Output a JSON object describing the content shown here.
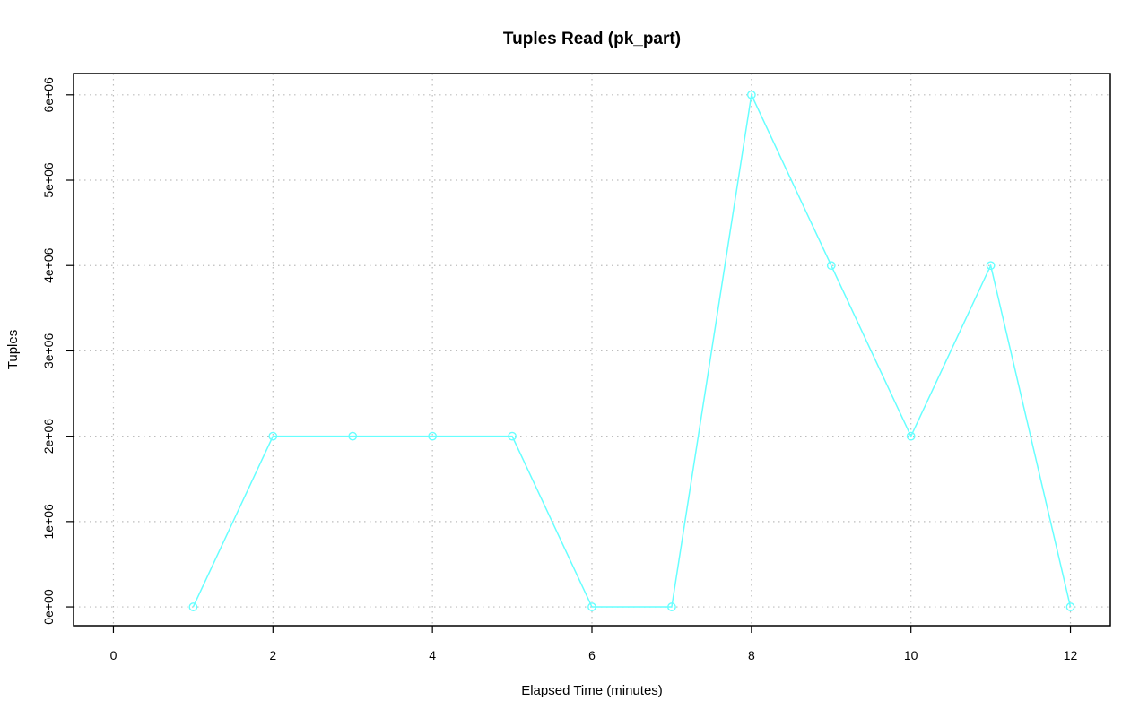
{
  "chart_data": {
    "type": "line",
    "title": "Tuples Read (pk_part)",
    "xlabel": "Elapsed Time (minutes)",
    "ylabel": "Tuples",
    "xlim": [
      -0.5,
      12.5
    ],
    "ylim": [
      -220000,
      6250000
    ],
    "xticks": [
      0,
      2,
      4,
      6,
      8,
      10,
      12
    ],
    "xtick_labels": [
      "0",
      "2",
      "4",
      "6",
      "8",
      "10",
      "12"
    ],
    "yticks": [
      0,
      1000000,
      2000000,
      3000000,
      4000000,
      5000000,
      6000000
    ],
    "ytick_labels": [
      "0e+00",
      "1e+06",
      "2e+06",
      "3e+06",
      "4e+06",
      "5e+06",
      "6e+06"
    ],
    "grid": true,
    "series": [
      {
        "color": "#66ffff",
        "marker": "circle",
        "x": [
          1,
          2,
          3,
          4,
          5,
          6,
          7,
          8,
          9,
          10,
          11,
          12
        ],
        "y": [
          0,
          2000000,
          2000000,
          2000000,
          2000000,
          0,
          0,
          6000000,
          4000000,
          2000000,
          4000000,
          0
        ]
      }
    ]
  }
}
